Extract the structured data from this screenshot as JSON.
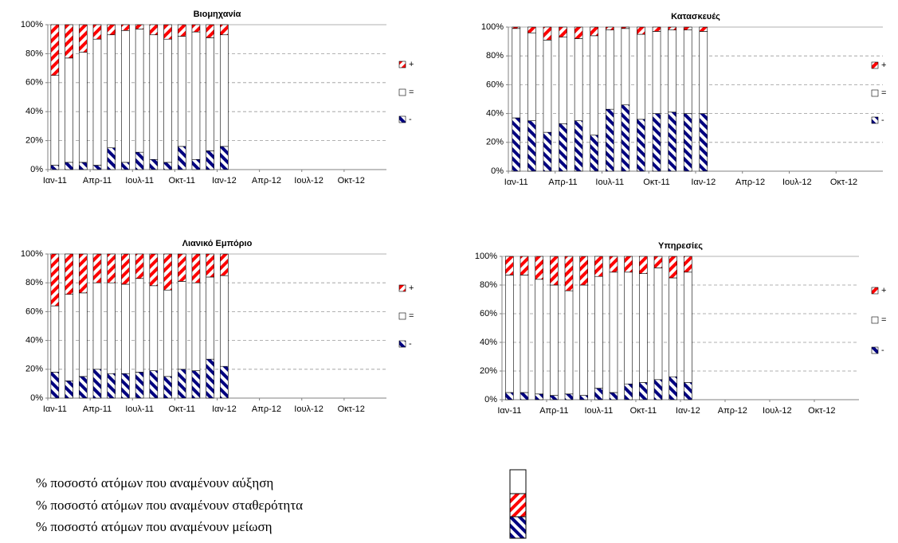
{
  "chart_data": [
    {
      "type": "bar",
      "stacked": true,
      "title": "Βιομηχανία",
      "categories": [
        "Ιαν-11",
        null,
        null,
        "Απρ-11",
        null,
        null,
        "Ιουλ-11",
        null,
        null,
        "Οκτ-11",
        null,
        null,
        "Ιαν-12",
        null,
        null,
        "Απρ-12",
        null,
        null,
        "Ιουλ-12",
        null,
        null,
        "Οκτ-12",
        null,
        null
      ],
      "series": [
        {
          "name": "-",
          "color": "#000080",
          "values": [
            3,
            5,
            5,
            3,
            15,
            5,
            12,
            7,
            5,
            16,
            7,
            13,
            16,
            null,
            null,
            null,
            null,
            null,
            null,
            null,
            null,
            null,
            null,
            null
          ]
        },
        {
          "name": "=",
          "color": "#ffffff",
          "values": [
            62,
            72,
            76,
            87,
            78,
            91,
            85,
            86,
            85,
            76,
            88,
            78,
            77,
            null,
            null,
            null,
            null,
            null,
            null,
            null,
            null,
            null,
            null,
            null
          ]
        },
        {
          "name": "+",
          "color": "#ff0000",
          "values": [
            35,
            23,
            19,
            10,
            7,
            4,
            3,
            7,
            10,
            8,
            5,
            9,
            7,
            null,
            null,
            null,
            null,
            null,
            null,
            null,
            null,
            null,
            null,
            null
          ]
        }
      ],
      "ylim": [
        0,
        100
      ],
      "yticks": [
        {
          "value": 0,
          "label": "0%"
        },
        {
          "value": 20,
          "label": "20%"
        },
        {
          "value": 40,
          "label": "40%"
        },
        {
          "value": 60,
          "label": "60%"
        },
        {
          "value": 80,
          "label": "80%"
        },
        {
          "value": 100,
          "label": "100%"
        }
      ],
      "grid": true
    },
    {
      "type": "bar",
      "stacked": true,
      "title": "Κατασκευές",
      "categories": [
        "Ιαν-11",
        null,
        null,
        "Απρ-11",
        null,
        null,
        "Ιουλ-11",
        null,
        null,
        "Οκτ-11",
        null,
        null,
        "Ιαν-12",
        null,
        null,
        "Απρ-12",
        null,
        null,
        "Ιουλ-12",
        null,
        null,
        "Οκτ-12",
        null,
        null
      ],
      "series": [
        {
          "name": "-",
          "color": "#000080",
          "values": [
            37,
            35,
            27,
            33,
            35,
            25,
            43,
            46,
            36,
            40,
            41,
            40,
            40,
            null,
            null,
            null,
            null,
            null,
            null,
            null,
            null,
            null,
            null,
            null
          ]
        },
        {
          "name": "=",
          "color": "#ffffff",
          "values": [
            62,
            61,
            64,
            60,
            57,
            69,
            55,
            53,
            59,
            57,
            57,
            58,
            57,
            null,
            null,
            null,
            null,
            null,
            null,
            null,
            null,
            null,
            null,
            null
          ]
        },
        {
          "name": "+",
          "color": "#ff0000",
          "values": [
            1,
            4,
            9,
            7,
            8,
            6,
            2,
            1,
            5,
            3,
            2,
            2,
            3,
            null,
            null,
            null,
            null,
            null,
            null,
            null,
            null,
            null,
            null,
            null
          ]
        }
      ],
      "ylim": [
        0,
        100
      ],
      "yticks": [
        {
          "value": 0,
          "label": "0%"
        },
        {
          "value": 20,
          "label": "20%"
        },
        {
          "value": 40,
          "label": "40%"
        },
        {
          "value": 60,
          "label": "60%"
        },
        {
          "value": 80,
          "label": "80%"
        },
        {
          "value": 100,
          "label": "100%"
        }
      ],
      "grid": true
    },
    {
      "type": "bar",
      "stacked": true,
      "title": "Λιανικό Εμπόριο",
      "categories": [
        "Ιαν-11",
        null,
        null,
        "Απρ-11",
        null,
        null,
        "Ιουλ-11",
        null,
        null,
        "Οκτ-11",
        null,
        null,
        "Ιαν-12",
        null,
        null,
        "Απρ-12",
        null,
        null,
        "Ιουλ-12",
        null,
        null,
        "Οκτ-12",
        null,
        null
      ],
      "series": [
        {
          "name": "-",
          "color": "#000080",
          "values": [
            18,
            12,
            15,
            20,
            17,
            17,
            18,
            19,
            15,
            20,
            19,
            27,
            22,
            null,
            null,
            null,
            null,
            null,
            null,
            null,
            null,
            null,
            null,
            null
          ]
        },
        {
          "name": "=",
          "color": "#ffffff",
          "values": [
            46,
            60,
            58,
            60,
            63,
            62,
            65,
            59,
            60,
            61,
            61,
            57,
            63,
            null,
            null,
            null,
            null,
            null,
            null,
            null,
            null,
            null,
            null,
            null
          ]
        },
        {
          "name": "+",
          "color": "#ff0000",
          "values": [
            36,
            28,
            27,
            20,
            20,
            21,
            17,
            22,
            25,
            19,
            20,
            16,
            15,
            null,
            null,
            null,
            null,
            null,
            null,
            null,
            null,
            null,
            null,
            null
          ]
        }
      ],
      "ylim": [
        0,
        100
      ],
      "yticks": [
        {
          "value": 0,
          "label": "0%"
        },
        {
          "value": 20,
          "label": "20%"
        },
        {
          "value": 40,
          "label": "40%"
        },
        {
          "value": 60,
          "label": "60%"
        },
        {
          "value": 80,
          "label": "80%"
        },
        {
          "value": 100,
          "label": "100%"
        }
      ],
      "grid": true
    },
    {
      "type": "bar",
      "stacked": true,
      "title": "Υπηρεσίες",
      "categories": [
        "Ιαν-11",
        null,
        null,
        "Απρ-11",
        null,
        null,
        "Ιουλ-11",
        null,
        null,
        "Οκτ-11",
        null,
        null,
        "Ιαν-12",
        null,
        null,
        "Απρ-12",
        null,
        null,
        "Ιουλ-12",
        null,
        null,
        "Οκτ-12",
        null,
        null
      ],
      "series": [
        {
          "name": "-",
          "color": "#000080",
          "values": [
            5,
            5,
            4,
            3,
            4,
            3,
            8,
            5,
            11,
            12,
            14,
            16,
            12,
            null,
            null,
            null,
            null,
            null,
            null,
            null,
            null,
            null,
            null,
            null
          ]
        },
        {
          "name": "=",
          "color": "#ffffff",
          "values": [
            82,
            82,
            80,
            77,
            72,
            77,
            78,
            84,
            78,
            76,
            78,
            69,
            77,
            null,
            null,
            null,
            null,
            null,
            null,
            null,
            null,
            null,
            null,
            null
          ]
        },
        {
          "name": "+",
          "color": "#ff0000",
          "values": [
            13,
            13,
            16,
            20,
            24,
            20,
            14,
            11,
            11,
            12,
            8,
            15,
            11,
            null,
            null,
            null,
            null,
            null,
            null,
            null,
            null,
            null,
            null,
            null
          ]
        }
      ],
      "ylim": [
        0,
        100
      ],
      "yticks": [
        {
          "value": 0,
          "label": "0%"
        },
        {
          "value": 20,
          "label": "20%"
        },
        {
          "value": 40,
          "label": "40%"
        },
        {
          "value": 60,
          "label": "60%"
        },
        {
          "value": 80,
          "label": "80%"
        },
        {
          "value": 100,
          "label": "100%"
        }
      ],
      "grid": true
    }
  ],
  "footer": {
    "lines": [
      "% ποσοστό ατόμων που αναμένουν αύξηση",
      "% ποσοστό ατόμων που αναμένουν σταθερότητα",
      "% ποσοστό ατόμων που αναμένουν μείωση"
    ]
  }
}
